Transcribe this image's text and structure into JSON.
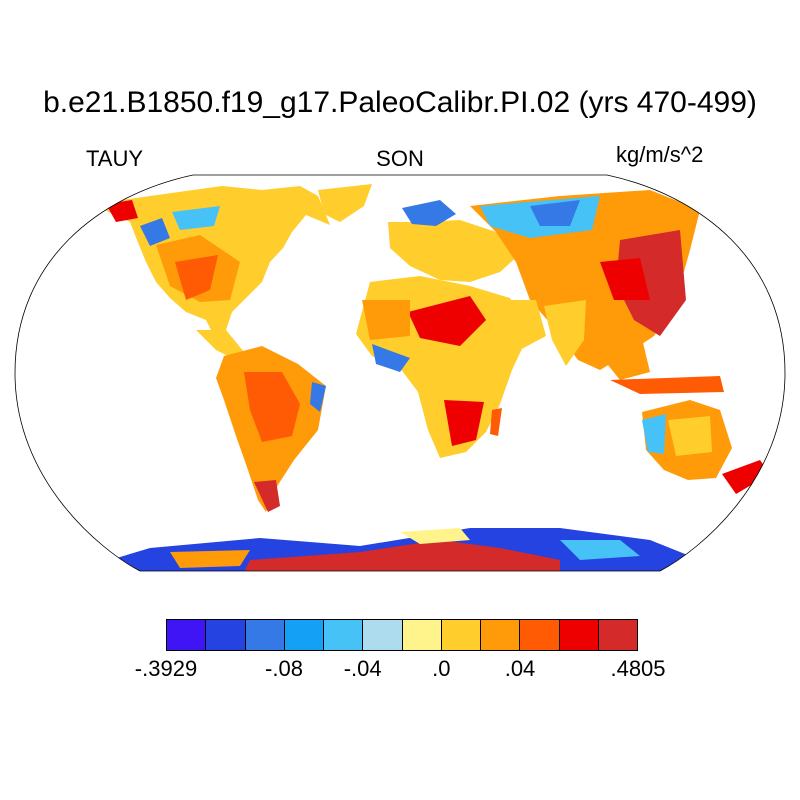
{
  "title": "b.e21.B1850.f19_g17.PaleoCalibr.PI.02 (yrs 470-499)",
  "subtitle_left": "TAUY",
  "subtitle_center": "SON",
  "subtitle_right": "kg/m/s^2",
  "projection": "Robinson",
  "colorbar": {
    "colors": [
      "#3f14f5",
      "#2443e0",
      "#3579e6",
      "#14a0f5",
      "#46c2f7",
      "#aedcef",
      "#fff48c",
      "#ffcd2c",
      "#ff9a08",
      "#ff5a04",
      "#ee0000",
      "#d42a2a"
    ],
    "labels": [
      {
        "text": "-.3929",
        "index": 0
      },
      {
        "text": "-.08",
        "index": 3
      },
      {
        "text": "-.04",
        "index": 5
      },
      {
        "text": ".0",
        "index": 7
      },
      {
        "text": ".04",
        "index": 9
      },
      {
        "text": ".4805",
        "index": 12
      }
    ]
  }
}
